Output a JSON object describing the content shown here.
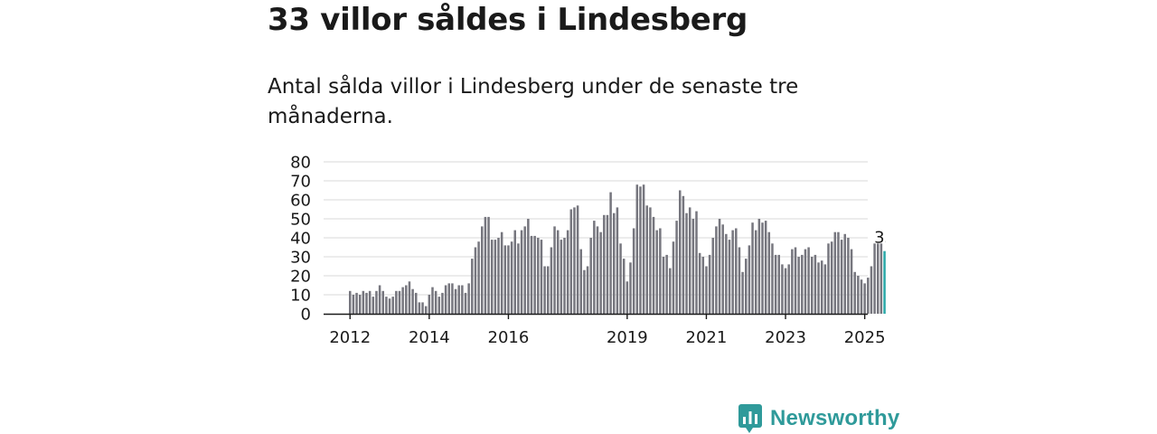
{
  "header": {
    "title": "33 villor såldes i Lindesberg",
    "subtitle": "Antal sålda villor i Lindesberg under de senaste tre månaderna."
  },
  "brand": {
    "name": "Newsworthy",
    "color": "#2f9a9a"
  },
  "chart_data": {
    "type": "bar",
    "title": "",
    "xlabel": "",
    "ylabel": "",
    "ylim": [
      0,
      80
    ],
    "yticks": [
      0,
      10,
      20,
      30,
      40,
      50,
      60,
      70,
      80
    ],
    "grid": true,
    "start": "2012-01",
    "xticks": [
      {
        "label": "2012",
        "index": 0
      },
      {
        "label": "2014",
        "index": 24
      },
      {
        "label": "2016",
        "index": 48
      },
      {
        "label": "2019",
        "index": 84
      },
      {
        "label": "2021",
        "index": 108
      },
      {
        "label": "2023",
        "index": 132
      },
      {
        "label": "2025",
        "index": 156
      }
    ],
    "bar_color": "#76767e",
    "highlight_color": "#2aa8a8",
    "highlight_label": "33",
    "values": [
      12,
      10,
      11,
      10,
      12,
      11,
      12,
      9,
      12,
      15,
      12,
      9,
      8,
      9,
      12,
      12,
      14,
      15,
      17,
      13,
      11,
      6,
      6,
      4,
      10,
      14,
      12,
      9,
      11,
      15,
      16,
      16,
      13,
      15,
      15,
      11,
      16,
      29,
      35,
      38,
      46,
      51,
      51,
      39,
      39,
      40,
      43,
      36,
      36,
      38,
      44,
      37,
      44,
      46,
      50,
      41,
      41,
      40,
      39,
      25,
      25,
      35,
      46,
      44,
      39,
      40,
      44,
      55,
      56,
      57,
      34,
      23,
      25,
      40,
      49,
      46,
      43,
      52,
      52,
      64,
      53,
      56,
      37,
      29,
      17,
      27,
      45,
      68,
      67,
      68,
      57,
      56,
      51,
      44,
      45,
      30,
      31,
      24,
      38,
      49,
      65,
      62,
      53,
      56,
      50,
      54,
      32,
      30,
      25,
      31,
      40,
      46,
      50,
      47,
      42,
      39,
      44,
      45,
      35,
      22,
      29,
      36,
      48,
      44,
      50,
      48,
      49,
      43,
      37,
      31,
      31,
      26,
      24,
      26,
      34,
      35,
      30,
      31,
      34,
      35,
      30,
      31,
      27,
      28,
      26,
      37,
      38,
      43,
      43,
      39,
      42,
      40,
      34,
      22,
      20,
      18,
      16,
      19,
      25,
      37,
      37,
      37,
      33
    ]
  }
}
